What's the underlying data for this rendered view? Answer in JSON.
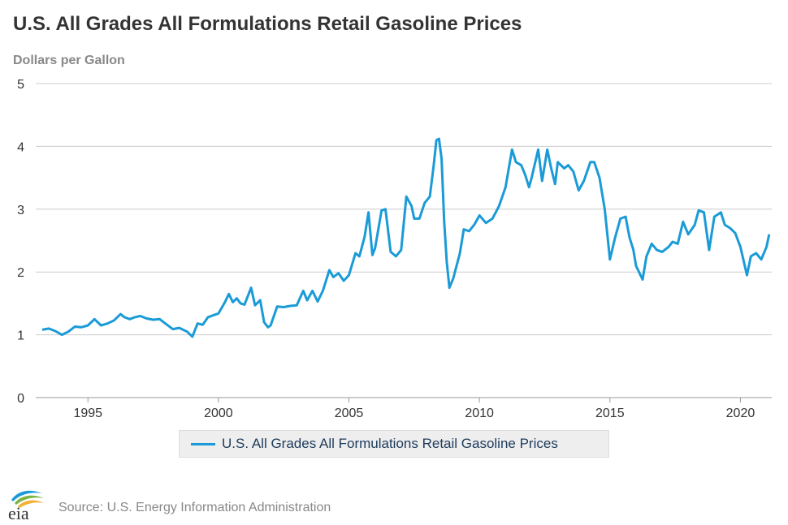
{
  "header": {
    "title": "U.S. All Grades All Formulations Retail Gasoline Prices",
    "units": "Dollars per Gallon"
  },
  "footer": {
    "logo_text": "eia",
    "source": "Source: U.S. Energy Information Administration"
  },
  "colors": {
    "series": "#1a9bd7",
    "grid": "#cccccc",
    "axis_text": "#333333"
  },
  "chart_data": {
    "type": "line",
    "title": "U.S. All Grades All Formulations Retail Gasoline Prices",
    "ylabel": "Dollars per Gallon",
    "xlabel": "",
    "ylim": [
      0,
      5
    ],
    "xlim": [
      1993.0,
      2021.2
    ],
    "yticks": [
      0,
      1,
      2,
      3,
      4,
      5
    ],
    "xticks": [
      1995,
      2000,
      2005,
      2010,
      2015,
      2020
    ],
    "grid": "horizontal",
    "legend_position": "bottom-center",
    "series": [
      {
        "name": "U.S. All Grades All Formulations Retail Gasoline Prices",
        "x": [
          1993.25,
          1993.5,
          1993.75,
          1994.0,
          1994.25,
          1994.5,
          1994.75,
          1995.0,
          1995.25,
          1995.5,
          1995.75,
          1996.0,
          1996.25,
          1996.4,
          1996.6,
          1996.8,
          1997.0,
          1997.25,
          1997.5,
          1997.75,
          1997.9,
          1998.25,
          1998.5,
          1998.8,
          1999.0,
          1999.2,
          1999.4,
          1999.6,
          1999.8,
          2000.0,
          2000.25,
          2000.4,
          2000.55,
          2000.7,
          2000.85,
          2001.0,
          2001.25,
          2001.4,
          2001.6,
          2001.75,
          2001.9,
          2002.0,
          2002.25,
          2002.5,
          2002.75,
          2003.0,
          2003.25,
          2003.4,
          2003.6,
          2003.8,
          2004.0,
          2004.25,
          2004.4,
          2004.6,
          2004.8,
          2005.0,
          2005.25,
          2005.4,
          2005.6,
          2005.75,
          2005.9,
          2006.0,
          2006.25,
          2006.4,
          2006.6,
          2006.8,
          2007.0,
          2007.2,
          2007.4,
          2007.5,
          2007.7,
          2007.9,
          2008.1,
          2008.25,
          2008.35,
          2008.45,
          2008.55,
          2008.65,
          2008.75,
          2008.85,
          2009.0,
          2009.25,
          2009.4,
          2009.6,
          2009.8,
          2010.0,
          2010.25,
          2010.5,
          2010.75,
          2011.0,
          2011.25,
          2011.4,
          2011.6,
          2011.75,
          2011.9,
          2012.0,
          2012.25,
          2012.4,
          2012.6,
          2012.75,
          2012.9,
          2013.0,
          2013.25,
          2013.4,
          2013.6,
          2013.8,
          2014.0,
          2014.25,
          2014.4,
          2014.6,
          2014.8,
          2015.0,
          2015.2,
          2015.4,
          2015.6,
          2015.75,
          2015.9,
          2016.0,
          2016.25,
          2016.4,
          2016.6,
          2016.8,
          2017.0,
          2017.25,
          2017.4,
          2017.6,
          2017.8,
          2018.0,
          2018.25,
          2018.4,
          2018.6,
          2018.8,
          2019.0,
          2019.25,
          2019.4,
          2019.6,
          2019.8,
          2020.0,
          2020.25,
          2020.4,
          2020.6,
          2020.8,
          2021.0,
          2021.1
        ],
        "values": [
          1.08,
          1.1,
          1.06,
          1.0,
          1.05,
          1.13,
          1.12,
          1.15,
          1.25,
          1.15,
          1.18,
          1.23,
          1.33,
          1.28,
          1.25,
          1.28,
          1.3,
          1.26,
          1.24,
          1.25,
          1.2,
          1.09,
          1.11,
          1.05,
          0.97,
          1.18,
          1.16,
          1.28,
          1.31,
          1.34,
          1.52,
          1.65,
          1.52,
          1.58,
          1.5,
          1.48,
          1.75,
          1.47,
          1.55,
          1.2,
          1.12,
          1.15,
          1.45,
          1.44,
          1.46,
          1.47,
          1.7,
          1.55,
          1.7,
          1.53,
          1.7,
          2.03,
          1.92,
          1.98,
          1.86,
          1.95,
          2.3,
          2.25,
          2.56,
          2.95,
          2.27,
          2.38,
          2.98,
          3.0,
          2.32,
          2.25,
          2.35,
          3.2,
          3.05,
          2.85,
          2.85,
          3.1,
          3.2,
          3.7,
          4.1,
          4.12,
          3.8,
          2.8,
          2.15,
          1.75,
          1.9,
          2.3,
          2.68,
          2.65,
          2.75,
          2.9,
          2.78,
          2.85,
          3.05,
          3.35,
          3.95,
          3.75,
          3.7,
          3.55,
          3.35,
          3.5,
          3.95,
          3.45,
          3.95,
          3.65,
          3.4,
          3.75,
          3.65,
          3.7,
          3.6,
          3.3,
          3.45,
          3.75,
          3.75,
          3.5,
          3.0,
          2.2,
          2.55,
          2.85,
          2.88,
          2.55,
          2.35,
          2.1,
          1.88,
          2.25,
          2.45,
          2.35,
          2.32,
          2.4,
          2.48,
          2.45,
          2.8,
          2.6,
          2.75,
          2.98,
          2.95,
          2.35,
          2.88,
          2.95,
          2.75,
          2.7,
          2.62,
          2.4,
          1.95,
          2.25,
          2.3,
          2.2,
          2.4,
          2.6
        ]
      }
    ]
  }
}
